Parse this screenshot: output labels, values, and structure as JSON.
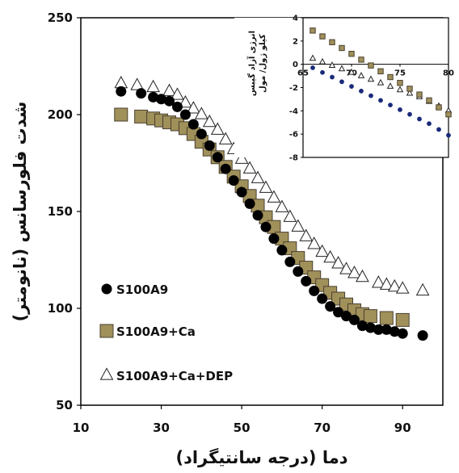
{
  "chart_data": [
    {
      "type": "scatter",
      "title": "",
      "xlabel": "دما (درجه سانتیگراد)",
      "ylabel": "شدت فلورسانس (نانومتر)",
      "xlim": [
        10,
        100
      ],
      "ylim": [
        50,
        250
      ],
      "xticks": [
        "10",
        "30",
        "50",
        "70",
        "90"
      ],
      "yticks": [
        "50",
        "100",
        "150",
        "200",
        "250"
      ],
      "legend_position": "bottom-left",
      "series": [
        {
          "name": "S100A9",
          "marker": "filled-circle",
          "color": "#000000",
          "x": [
            20,
            25,
            28,
            30,
            32,
            34,
            36,
            38,
            40,
            42,
            44,
            46,
            48,
            50,
            52,
            54,
            56,
            58,
            60,
            62,
            64,
            66,
            68,
            70,
            72,
            74,
            76,
            78,
            80,
            82,
            84,
            86,
            88,
            90,
            95
          ],
          "y": [
            212,
            211,
            209,
            208,
            207,
            204,
            200,
            195,
            190,
            184,
            178,
            172,
            166,
            160,
            154,
            148,
            142,
            136,
            130,
            124,
            119,
            114,
            109,
            105,
            101,
            98,
            96,
            94,
            91,
            90,
            89,
            89,
            88,
            87,
            86
          ]
        },
        {
          "name": "S100A9+Ca",
          "marker": "filled-square",
          "color": "#a0905a",
          "x": [
            20,
            25,
            28,
            30,
            32,
            34,
            36,
            38,
            40,
            42,
            44,
            46,
            48,
            50,
            52,
            54,
            56,
            58,
            60,
            62,
            64,
            66,
            68,
            70,
            72,
            74,
            76,
            78,
            80,
            82,
            86,
            90
          ],
          "y": [
            200,
            199,
            198,
            197,
            196,
            195,
            193,
            190,
            186,
            182,
            178,
            173,
            168,
            163,
            158,
            153,
            147,
            142,
            136,
            131,
            126,
            121,
            116,
            112,
            108,
            105,
            102,
            99,
            97,
            96,
            95,
            94
          ]
        },
        {
          "name": "S100A9+Ca+DEP",
          "marker": "open-triangle",
          "color": "#ffffff",
          "x": [
            20,
            24,
            28,
            32,
            34,
            36,
            38,
            40,
            42,
            44,
            46,
            48,
            50,
            52,
            54,
            56,
            58,
            60,
            62,
            64,
            66,
            68,
            70,
            72,
            74,
            76,
            78,
            80,
            84,
            86,
            88,
            90,
            95
          ],
          "y": [
            216,
            215,
            214,
            212,
            210,
            206,
            203,
            200,
            196,
            192,
            187,
            182,
            177,
            172,
            167,
            162,
            157,
            152,
            147,
            142,
            137,
            133,
            129,
            126,
            123,
            120,
            118,
            116,
            113,
            112,
            111,
            110,
            109
          ]
        }
      ]
    },
    {
      "type": "scatter",
      "title": "",
      "xlabel": "",
      "ylabel": "انرژی آزاد گیبس\nکیلو ژول/ مول",
      "xlim": [
        65,
        80
      ],
      "ylim": [
        -8,
        4
      ],
      "xticks": [
        "65",
        "70",
        "75",
        "80"
      ],
      "yticks": [
        "4",
        "2",
        "0",
        "-2",
        "-4",
        "-6",
        "-8"
      ],
      "series": [
        {
          "name": "S100A9",
          "marker": "filled-circle",
          "color": "#1a2a7a",
          "x": [
            66,
            67,
            68,
            69,
            70,
            71,
            72,
            73,
            74,
            75,
            76,
            77,
            78,
            79,
            80
          ],
          "y": [
            -0.3,
            -0.7,
            -1.1,
            -1.5,
            -1.9,
            -2.3,
            -2.7,
            -3.1,
            -3.5,
            -3.9,
            -4.3,
            -4.7,
            -5.1,
            -5.6,
            -6.1
          ]
        },
        {
          "name": "S100A9+Ca",
          "marker": "filled-square",
          "color": "#a0905a",
          "x": [
            66,
            67,
            68,
            69,
            70,
            71,
            72,
            73,
            74,
            75,
            76,
            77,
            78,
            79,
            80
          ],
          "y": [
            2.9,
            2.4,
            1.9,
            1.4,
            0.9,
            0.4,
            -0.1,
            -0.6,
            -1.1,
            -1.6,
            -2.1,
            -2.6,
            -3.1,
            -3.7,
            -4.3
          ]
        },
        {
          "name": "S100A9+Ca+DEP",
          "marker": "open-triangle",
          "color": "#ffffff",
          "x": [
            66,
            67,
            68,
            69,
            70,
            71,
            72,
            73,
            74,
            75,
            76,
            77,
            78,
            79,
            80
          ],
          "y": [
            0.5,
            0.2,
            -0.1,
            -0.4,
            -0.7,
            -1.0,
            -1.3,
            -1.6,
            -1.9,
            -2.2,
            -2.5,
            -2.8,
            -3.2,
            -3.6,
            -4.0
          ]
        }
      ]
    }
  ]
}
